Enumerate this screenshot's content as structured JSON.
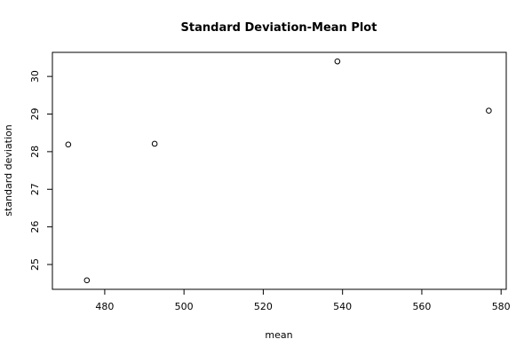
{
  "chart_data": {
    "type": "scatter",
    "title": "Standard Deviation-Mean Plot",
    "x_label": "mean",
    "y_label": "standard deviation",
    "x": [
      470.8,
      475.5,
      492.6,
      538.7,
      576.9
    ],
    "values": [
      28.19,
      24.58,
      28.21,
      30.4,
      29.09
    ],
    "color": "#000000",
    "xlim": [
      466.8,
      581.3
    ],
    "ylim": [
      24.34,
      30.64
    ],
    "xticks": [
      480,
      500,
      520,
      540,
      560,
      580
    ],
    "yticks": [
      25,
      26,
      27,
      28,
      29,
      30
    ]
  }
}
